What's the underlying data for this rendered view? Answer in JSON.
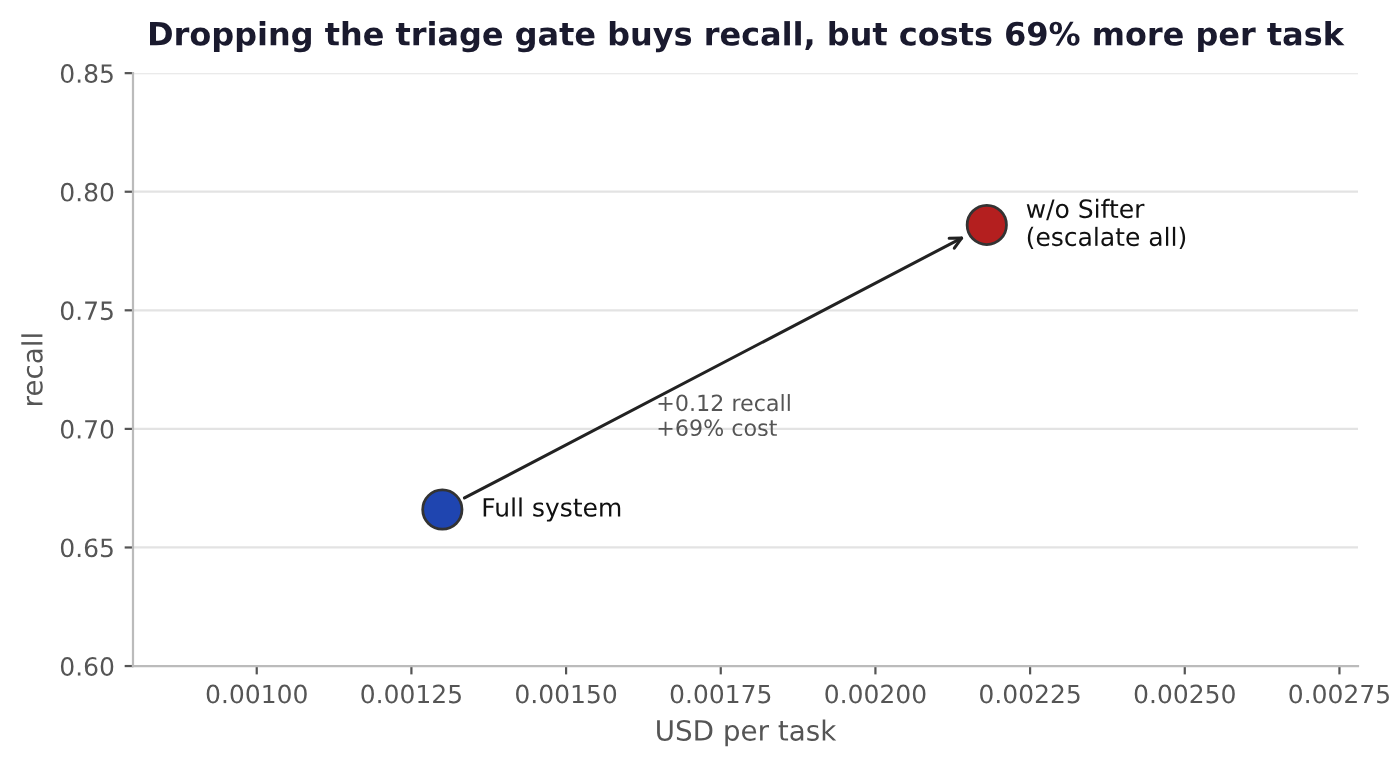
{
  "chart_data": {
    "type": "scatter",
    "title": "Dropping the triage gate buys recall, but costs 69% more per task",
    "xlabel": "USD per task",
    "ylabel": "recall",
    "series": [
      {
        "name": "Full system",
        "color": "#1f45b0",
        "x": [
          0.0013
        ],
        "values": [
          0.666
        ]
      },
      {
        "name": "w/o Sifter\n(escalate all)",
        "color": "#b41f1f",
        "x": [
          0.00218
        ],
        "values": [
          0.786
        ]
      }
    ],
    "annotations": [
      "+0.12 recall\n+69% cost"
    ],
    "xlim": [
      0.0008,
      0.00278
    ],
    "xticks": [
      {
        "value": 0.001,
        "label": "0.00100"
      },
      {
        "value": 0.00125,
        "label": "0.00125"
      },
      {
        "value": 0.0015,
        "label": "0.00150"
      },
      {
        "value": 0.00175,
        "label": "0.00175"
      },
      {
        "value": 0.002,
        "label": "0.00200"
      },
      {
        "value": 0.00225,
        "label": "0.00225"
      },
      {
        "value": 0.0025,
        "label": "0.00250"
      },
      {
        "value": 0.00275,
        "label": "0.00275"
      }
    ],
    "ylim": [
      0.6,
      0.85
    ],
    "yticks": [
      {
        "value": 0.6,
        "label": "0.60"
      },
      {
        "value": 0.65,
        "label": "0.65"
      },
      {
        "value": 0.7,
        "label": "0.70"
      },
      {
        "value": 0.75,
        "label": "0.75"
      },
      {
        "value": 0.8,
        "label": "0.80"
      },
      {
        "value": 0.85,
        "label": "0.85"
      }
    ],
    "grid": "y",
    "legend": false,
    "marker": "circle"
  }
}
